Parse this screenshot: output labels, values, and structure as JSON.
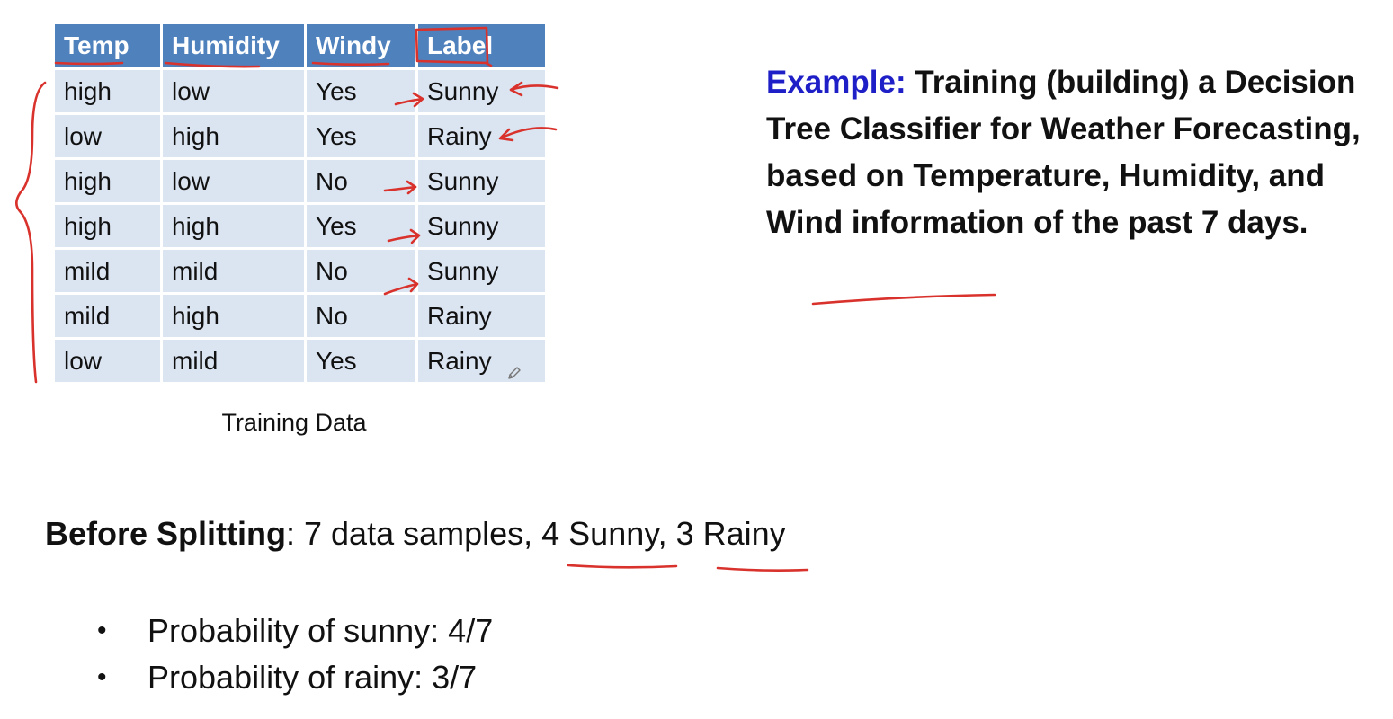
{
  "table": {
    "headers": [
      "Temp",
      "Humidity",
      "Windy",
      "Label"
    ],
    "rows": [
      [
        "high",
        "low",
        "Yes",
        "Sunny"
      ],
      [
        "low",
        "high",
        "Yes",
        "Rainy"
      ],
      [
        "high",
        "low",
        "No",
        "Sunny"
      ],
      [
        "high",
        "high",
        "Yes",
        "Sunny"
      ],
      [
        "mild",
        "mild",
        "No",
        "Sunny"
      ],
      [
        "mild",
        "high",
        "No",
        "Rainy"
      ],
      [
        "low",
        "mild",
        "Yes",
        "Rainy"
      ]
    ],
    "caption": "Training Data"
  },
  "example": {
    "label": "Example:",
    "text": " Training (building) a Decision Tree Classifier for Weather Forecasting, based on Temperature, Humidity, and Wind information of the past 7 days."
  },
  "before_split": {
    "label": "Before Splitting",
    "text": ": 7 data samples, 4 Sunny, 3 Rainy"
  },
  "probabilities": [
    "Probability of sunny: 4/7",
    "Probability of rainy: 3/7"
  ],
  "bullet_symbol": "•",
  "icons": {
    "edit": "pencil-icon"
  },
  "colors": {
    "header_bg": "#4f81bd",
    "cell_bg": "#dbe4f1",
    "example_label": "#1f1fc8",
    "annotation_ink": "#d9322c"
  }
}
